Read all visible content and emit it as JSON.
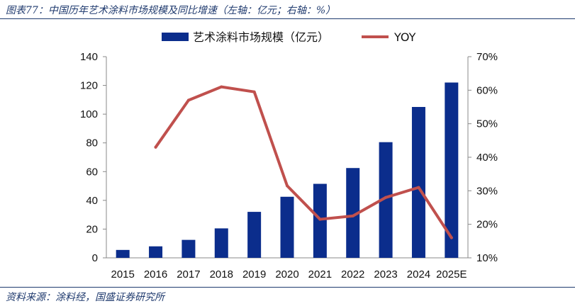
{
  "header": {
    "title": "图表77：中国历年艺术涂料市场规模及同比增速（左轴：亿元；右轴：%）"
  },
  "footer": {
    "source": "资料来源：涂料经，国盛证券研究所"
  },
  "colors": {
    "bar": "#0b2d8c",
    "line": "#c0504d",
    "rule": "#1f3a6e"
  },
  "chart_data": {
    "type": "bar",
    "categories": [
      "2015",
      "2016",
      "2017",
      "2018",
      "2019",
      "2020",
      "2021",
      "2022",
      "2023",
      "2024",
      "2025E"
    ],
    "series": [
      {
        "name": "艺术涂料市场规模（亿元）",
        "type": "bar",
        "axis": "left",
        "values": [
          5.5,
          8,
          12.5,
          20.5,
          32,
          42.5,
          51.5,
          62.5,
          80.5,
          105,
          122
        ]
      },
      {
        "name": "YOY",
        "type": "line",
        "axis": "right",
        "values": [
          null,
          43,
          57,
          61,
          59.5,
          31.5,
          21.5,
          22.5,
          28,
          31,
          16
        ]
      }
    ],
    "y_left": {
      "ylim": [
        0,
        140
      ],
      "ticks": [
        "0",
        "20",
        "40",
        "60",
        "80",
        "100",
        "120",
        "140"
      ]
    },
    "y_right": {
      "ylim": [
        10,
        70
      ],
      "ticks": [
        "10%",
        "20%",
        "30%",
        "40%",
        "50%",
        "60%",
        "70%"
      ]
    },
    "legend": {
      "position": "top-center"
    },
    "grid": false
  }
}
